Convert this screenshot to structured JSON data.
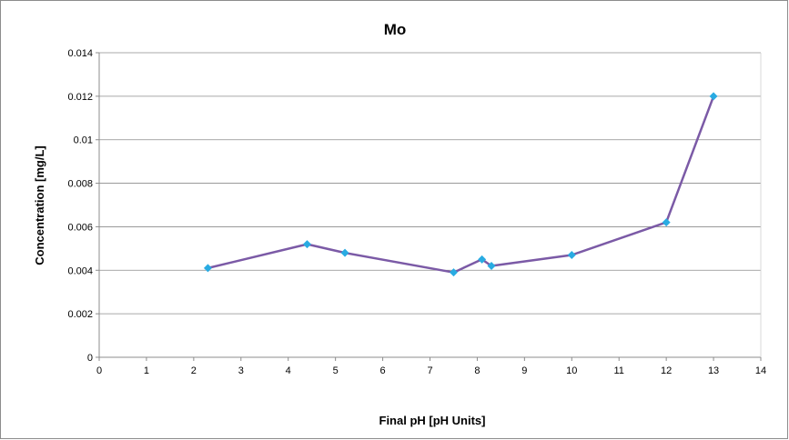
{
  "chart_data": {
    "type": "line",
    "title": "Mo",
    "xlabel": "Final pH [pH Units]",
    "ylabel": "Concentration [mg/L]",
    "xlim": [
      0,
      14
    ],
    "ylim": [
      0,
      0.014
    ],
    "x_ticks": [
      "0",
      "1",
      "2",
      "3",
      "4",
      "5",
      "6",
      "7",
      "8",
      "9",
      "10",
      "11",
      "12",
      "13",
      "14"
    ],
    "y_ticks": [
      "0",
      "0.002",
      "0.004",
      "0.006",
      "0.008",
      "0.01",
      "0.012",
      "0.014"
    ],
    "grid": "horizontal",
    "legend": "none",
    "series": [
      {
        "x": [
          2.3,
          4.4,
          5.2,
          7.5,
          8.1,
          8.3,
          10.0,
          12.0,
          13.0
        ],
        "y": [
          0.0041,
          0.0052,
          0.0048,
          0.0039,
          0.0045,
          0.0042,
          0.0047,
          0.0062,
          0.012
        ]
      }
    ],
    "colors": {
      "line": "#7b5aa6",
      "marker": "#29abe2",
      "grid": "#8c8c8c",
      "axis": "#8c8c8c"
    }
  }
}
